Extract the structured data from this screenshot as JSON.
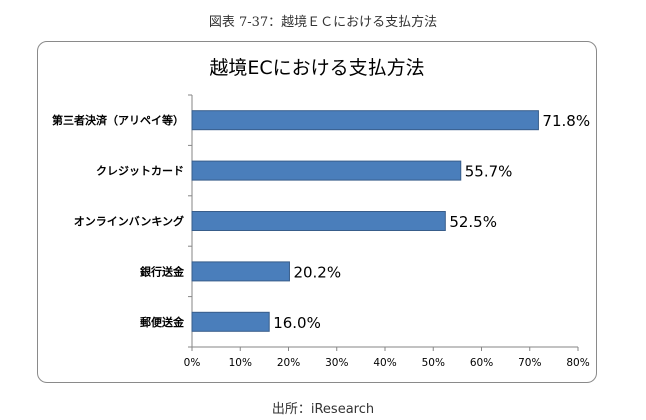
{
  "figure": {
    "caption": "図表 7-37：越境ＥＣにおける支払方法",
    "source": "出所：iResearch"
  },
  "chart_data": {
    "type": "bar",
    "orientation": "horizontal",
    "title": "越境ECにおける支払方法",
    "categories": [
      "第三者決済（アリペイ等）",
      "クレジットカード",
      "オンラインバンキング",
      "銀行送金",
      "郵便送金"
    ],
    "values": [
      71.8,
      55.7,
      52.5,
      20.2,
      16.0
    ],
    "value_labels": [
      "71.8%",
      "55.7%",
      "52.5%",
      "20.2%",
      "16.0%"
    ],
    "xlim": [
      0,
      80
    ],
    "xticks": [
      0,
      10,
      20,
      30,
      40,
      50,
      60,
      70,
      80
    ],
    "xtick_labels": [
      "0%",
      "10%",
      "20%",
      "30%",
      "40%",
      "50%",
      "60%",
      "70%",
      "80%"
    ],
    "xlabel": "",
    "ylabel": "",
    "bar_color": "#4a7ebb",
    "bar_edge_color": "#385d8a",
    "grid": false
  }
}
